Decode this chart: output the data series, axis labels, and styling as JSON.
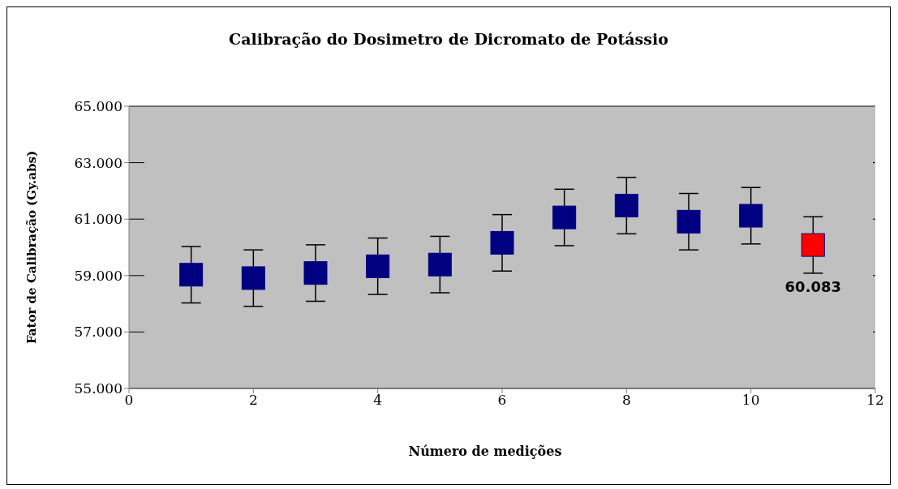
{
  "chart_data": {
    "type": "scatter",
    "title": "Calibração do Dosimetro de Dicromato de Potássio",
    "xlabel": "Número de medições",
    "ylabel": "Fator de Calibração (Gy.abs)",
    "x": [
      1,
      2,
      3,
      4,
      5,
      6,
      7,
      8,
      9,
      10,
      11
    ],
    "values": [
      59030,
      58910,
      59090,
      59330,
      59390,
      60160,
      61060,
      61480,
      60910,
      61120,
      60083
    ],
    "errors": [
      1000,
      1000,
      1000,
      1000,
      1000,
      1000,
      1000,
      1000,
      1000,
      1000,
      1000
    ],
    "colors": [
      "#000080",
      "#000080",
      "#000080",
      "#000080",
      "#000080",
      "#000080",
      "#000080",
      "#000080",
      "#000080",
      "#000080",
      "#ff0000"
    ],
    "value_labels": [
      null,
      null,
      null,
      null,
      null,
      null,
      null,
      null,
      null,
      null,
      "60.083"
    ],
    "xlim": [
      0,
      12
    ],
    "xticks": [
      0,
      2,
      4,
      6,
      8,
      10,
      12
    ],
    "ylim": [
      55000,
      65000
    ],
    "yticks": [
      {
        "value": 55000,
        "label": "55.000"
      },
      {
        "value": 57000,
        "label": "57.000"
      },
      {
        "value": 59000,
        "label": "59.000"
      },
      {
        "value": 61000,
        "label": "61.000"
      },
      {
        "value": 63000,
        "label": "63.000"
      },
      {
        "value": 65000,
        "label": "65.000"
      }
    ],
    "grid": "y",
    "marker": "square",
    "legend": false
  }
}
